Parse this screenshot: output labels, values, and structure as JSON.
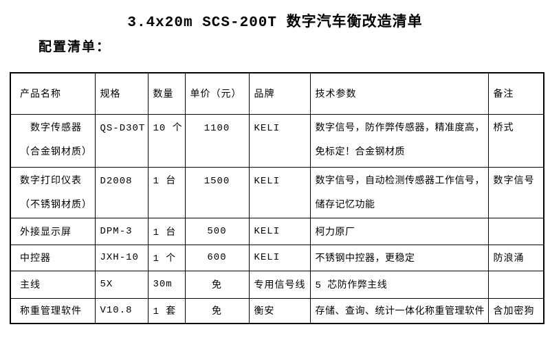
{
  "page": {
    "title": "3.4x20m SCS-200T 数字汽车衡改造清单",
    "subtitle": "配置清单："
  },
  "colors": {
    "text": "#000000",
    "border": "#000000",
    "background": "#ffffff"
  },
  "table": {
    "headers": [
      "产品名称",
      "规格",
      "数量",
      "单价（元）",
      "品牌",
      "技术参数",
      "备注"
    ],
    "rows": [
      {
        "product": "　数字传感器\n（合金钢材质）",
        "spec": "QS-D30T",
        "qty": "10 个",
        "price": "1100",
        "brand": "KELI",
        "params": "数字信号，防作弊传感器，精准度高，\n免标定！合金钢材质",
        "note": "桥式"
      },
      {
        "product": "数字打印仪表\n（不锈钢材质）",
        "spec": "D2008",
        "qty": "1 台",
        "price": "1500",
        "brand": "KELI",
        "params": "数字信号，自动检测传感器工作信号，\n储存记忆功能",
        "note": "数字信号"
      },
      {
        "product": "外接显示屏",
        "spec": "DPM-3",
        "qty": "1 台",
        "price": "500",
        "brand": "KELI",
        "params": "柯力原厂",
        "note": ""
      },
      {
        "product": "中控器",
        "spec": "JXH-10",
        "qty": "1 个",
        "price": "600",
        "brand": "KELI",
        "params": "不锈钢中控器，更稳定",
        "note": "防浪涌"
      },
      {
        "product": "主线",
        "spec": "5X",
        "qty": "30m",
        "price": "免",
        "brand": "专用信号线",
        "params": "5 芯防作弊主线",
        "note": ""
      },
      {
        "product": "称重管理软件",
        "spec": "V10.8",
        "qty": "1 套",
        "price": "免",
        "brand": "衡安",
        "params": "存储、查询、统计一体化称重管理软件",
        "note": "含加密狗"
      }
    ]
  }
}
